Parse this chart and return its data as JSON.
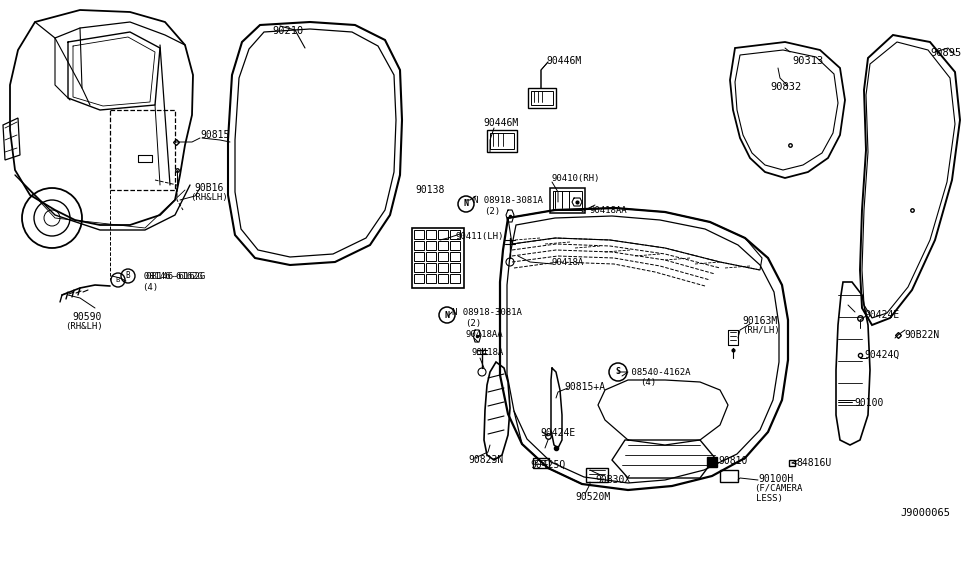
{
  "bg_color": "#ffffff",
  "line_color": "#000000",
  "text_color": "#000000",
  "diagram_id": "J9000065",
  "figsize": [
    9.75,
    5.66
  ],
  "dpi": 100,
  "xlim": [
    0,
    975
  ],
  "ylim": [
    0,
    566
  ]
}
